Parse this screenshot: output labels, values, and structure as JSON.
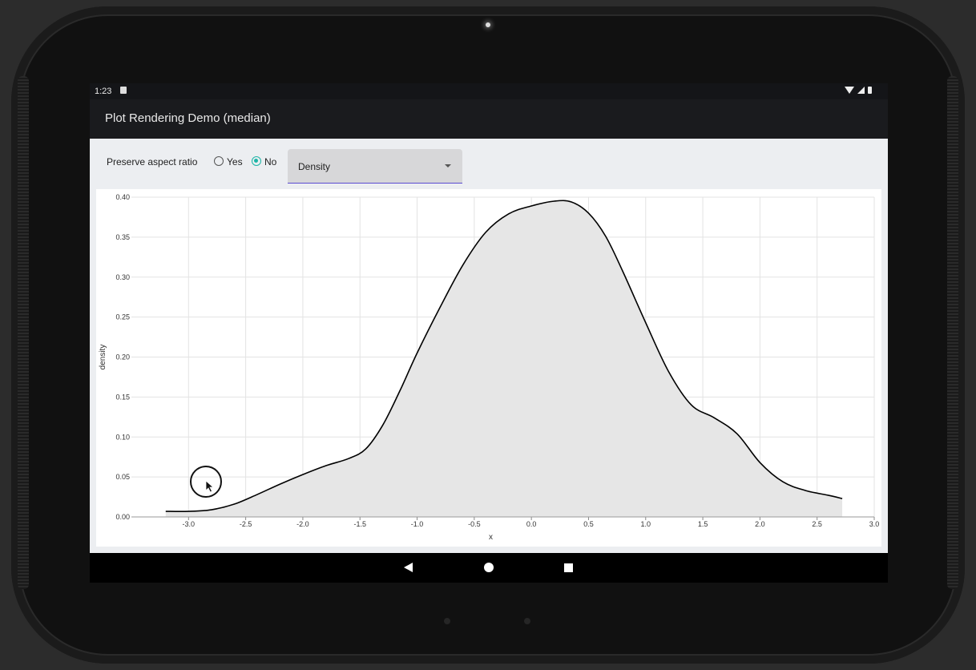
{
  "status_bar": {
    "time": "1:23"
  },
  "app_bar": {
    "title": "Plot Rendering Demo (median)"
  },
  "controls": {
    "preserve_label": "Preserve aspect ratio",
    "yes_label": "Yes",
    "no_label": "No",
    "selected_option": "No",
    "plot_type": "Density"
  },
  "chart_data": {
    "type": "area",
    "xlabel": "x",
    "ylabel": "density",
    "xlim": [
      -3.5,
      3.0
    ],
    "ylim": [
      0.0,
      0.4
    ],
    "x_ticks": [
      "-3.0",
      "-2.5",
      "-2.0",
      "-1.5",
      "-1.0",
      "-0.5",
      "0.0",
      "0.5",
      "1.0",
      "1.5",
      "2.0",
      "2.5",
      "3.0"
    ],
    "y_ticks": [
      "0.00",
      "0.05",
      "0.10",
      "0.15",
      "0.20",
      "0.25",
      "0.30",
      "0.35",
      "0.40"
    ],
    "grid": true,
    "fill_color": "#e6e6e6",
    "line_color": "#000000",
    "x": [
      -3.2,
      -3.0,
      -2.8,
      -2.6,
      -2.4,
      -2.2,
      -2.0,
      -1.8,
      -1.6,
      -1.45,
      -1.3,
      -1.15,
      -1.0,
      -0.8,
      -0.6,
      -0.4,
      -0.2,
      0.0,
      0.2,
      0.35,
      0.5,
      0.65,
      0.8,
      1.0,
      1.2,
      1.4,
      1.6,
      1.8,
      2.0,
      2.2,
      2.4,
      2.6,
      2.72
    ],
    "y": [
      0.007,
      0.007,
      0.009,
      0.016,
      0.028,
      0.041,
      0.053,
      0.064,
      0.073,
      0.085,
      0.115,
      0.158,
      0.205,
      0.262,
      0.315,
      0.356,
      0.379,
      0.389,
      0.395,
      0.394,
      0.38,
      0.351,
      0.307,
      0.243,
      0.182,
      0.14,
      0.124,
      0.104,
      0.068,
      0.044,
      0.033,
      0.027,
      0.023
    ]
  }
}
